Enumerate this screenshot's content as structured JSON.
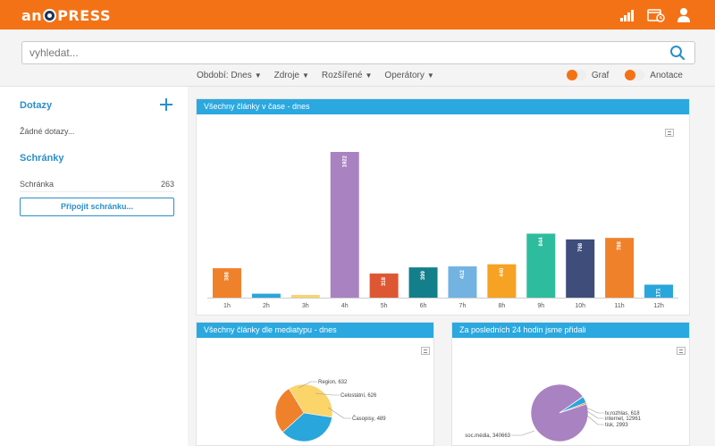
{
  "header": {
    "logo_text_left": "an",
    "logo_text_right": "PRESS",
    "icons": [
      "signal-icon",
      "calendar-clock-icon",
      "user-icon"
    ]
  },
  "search": {
    "placeholder": "vyhledat..."
  },
  "filters": [
    {
      "label": "Období: Dnes"
    },
    {
      "label": "Zdroje"
    },
    {
      "label": "Rozšířené"
    },
    {
      "label": "Operátory"
    }
  ],
  "toggles": [
    {
      "label": "Graf"
    },
    {
      "label": "Anotace"
    }
  ],
  "sidebar": {
    "queries_title": "Dotazy",
    "queries_empty": "Žádné dotazy...",
    "boxes_title": "Schránky",
    "boxes": [
      {
        "label": "Schránka",
        "count": "263"
      }
    ],
    "connect_button": "Připojit schránku..."
  },
  "colors": {
    "accent": "#f47216",
    "panel_header": "#2aa8df",
    "link": "#2c8fc9"
  },
  "panels": {
    "time": {
      "title": "Všechny články v čase - dnes"
    },
    "media": {
      "title": "Všechny články dle mediatypu - dnes"
    },
    "last24": {
      "title": "Za posledních 24 hodin jsme přidali"
    }
  },
  "chart_data": [
    {
      "type": "bar",
      "categories": [
        "1h",
        "2h",
        "3h",
        "4h",
        "5h",
        "6h",
        "7h",
        "8h",
        "9h",
        "10h",
        "11h",
        "12h"
      ],
      "values": [
        388,
        52,
        33,
        1922,
        318,
        399,
        412,
        440,
        844,
        768,
        788,
        171
      ],
      "value_labels": [
        "388",
        "",
        "",
        "1922",
        "318",
        "399",
        "412",
        "440",
        "844",
        "768",
        "788",
        "171"
      ],
      "colors": [
        "#f0812b",
        "#29a6dc",
        "#fbd46a",
        "#a982c1",
        "#dd5733",
        "#137f8a",
        "#72b3e2",
        "#f6a223",
        "#2ebc9e",
        "#3f4d7a",
        "#f0812b",
        "#29a6dc"
      ],
      "ylim": [
        0,
        1922
      ],
      "title": "Všechny články v čase - dnes"
    },
    {
      "type": "pie",
      "labels": [
        "Region",
        "Celostátní",
        "Časopisy",
        ""
      ],
      "values": [
        632,
        626,
        489,
        0
      ],
      "display": [
        "Region, 632",
        "Celostátní, 626",
        "Časopisy, 489"
      ],
      "colors": [
        "#fbd46a",
        "#29a6dc",
        "#f0812b",
        "#a982c1"
      ],
      "title": "Všechny články dle mediatypu - dnes"
    },
    {
      "type": "pie",
      "labels": [
        "soc.média",
        "tv,rozhlas",
        "internet",
        "tisk"
      ],
      "values": [
        340663,
        618,
        12961,
        2993
      ],
      "display": [
        "soc.média, 340663",
        "tv,rozhlas, 618",
        "internet, 12961",
        "tisk, 2993"
      ],
      "colors": [
        "#a982c1",
        "#29a6dc",
        "#29a6dc",
        "#f0812b"
      ],
      "title": "Za posledních 24 hodin jsme přidali"
    }
  ]
}
